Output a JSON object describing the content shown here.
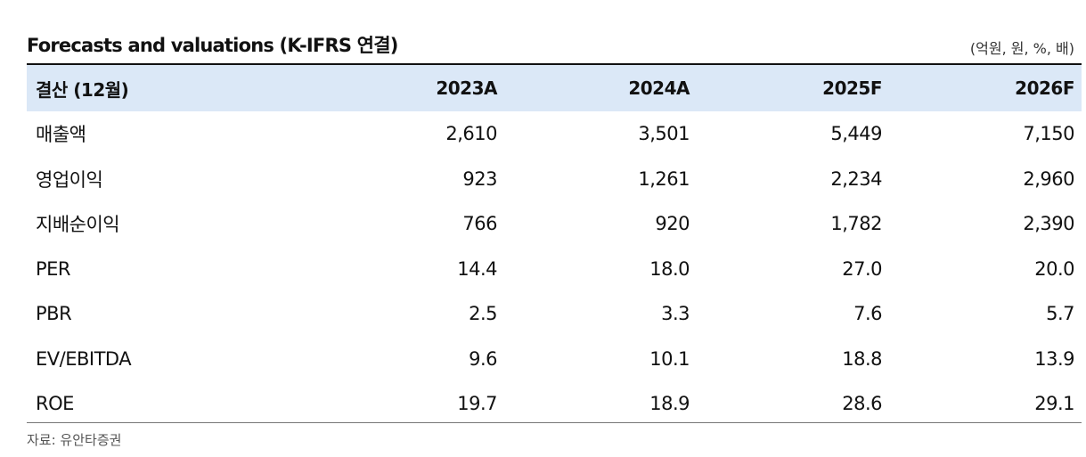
{
  "title": "Forecasts and valuations (K-IFRS 연결)",
  "unit": "(억원, 원, %, 배)",
  "table": {
    "header": [
      "결산 (12월)",
      "2023A",
      "2024A",
      "2025F",
      "2026F"
    ],
    "rows": [
      {
        "label": "매출액",
        "values": [
          "2,610",
          "3,501",
          "5,449",
          "7,150"
        ]
      },
      {
        "label": "영업이익",
        "values": [
          "923",
          "1,261",
          "2,234",
          "2,960"
        ]
      },
      {
        "label": "지배순이익",
        "values": [
          "766",
          "920",
          "1,782",
          "2,390"
        ]
      },
      {
        "label": "PER",
        "values": [
          "14.4",
          "18.0",
          "27.0",
          "20.0"
        ]
      },
      {
        "label": "PBR",
        "values": [
          "2.5",
          "3.3",
          "7.6",
          "5.7"
        ]
      },
      {
        "label": "EV/EBITDA",
        "values": [
          "9.6",
          "10.1",
          "18.8",
          "13.9"
        ]
      },
      {
        "label": "ROE",
        "values": [
          "19.7",
          "18.9",
          "28.6",
          "29.1"
        ]
      }
    ]
  },
  "source": "자료: 유안타증권"
}
